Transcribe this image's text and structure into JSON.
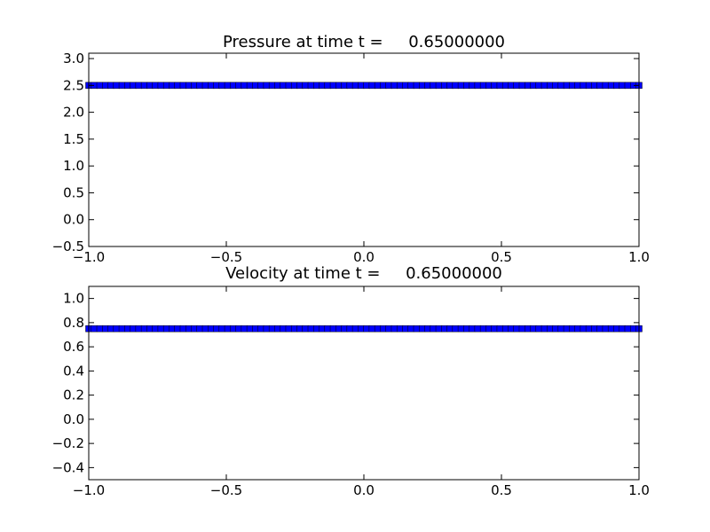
{
  "chart_data": [
    {
      "type": "scatter",
      "title": "Pressure at time t =     0.65000000",
      "xlabel": "",
      "ylabel": "",
      "xlim": [
        -1.0,
        1.0
      ],
      "ylim": [
        -0.5,
        3.1
      ],
      "grid": false,
      "x_ticks": [
        -1.0,
        -0.5,
        0.0,
        0.5,
        1.0
      ],
      "x_tick_labels": [
        "−1.0",
        "−0.5",
        "0.0",
        "0.5",
        "1.0"
      ],
      "y_ticks": [
        -0.5,
        0.0,
        0.5,
        1.0,
        1.5,
        2.0,
        2.5,
        3.0
      ],
      "y_tick_labels": [
        "−0.5",
        "0.0",
        "0.5",
        "1.0",
        "1.5",
        "2.0",
        "2.5",
        "3.0"
      ],
      "marker_color": "#0000ff",
      "series": [
        {
          "x_start": -1.0,
          "x_end": 1.0,
          "count": 100,
          "y": 2.5
        }
      ]
    },
    {
      "type": "scatter",
      "title": "Velocity at time t =     0.65000000",
      "xlabel": "",
      "ylabel": "",
      "xlim": [
        -1.0,
        1.0
      ],
      "ylim": [
        -0.5,
        1.1
      ],
      "grid": false,
      "x_ticks": [
        -1.0,
        -0.5,
        0.0,
        0.5,
        1.0
      ],
      "x_tick_labels": [
        "−1.0",
        "−0.5",
        "0.0",
        "0.5",
        "1.0"
      ],
      "y_ticks": [
        -0.4,
        -0.2,
        0.0,
        0.2,
        0.4,
        0.6,
        0.8,
        1.0
      ],
      "y_tick_labels": [
        "−0.4",
        "−0.2",
        "0.0",
        "0.2",
        "0.4",
        "0.6",
        "0.8",
        "1.0"
      ],
      "marker_color": "#0000ff",
      "series": [
        {
          "x_start": -1.0,
          "x_end": 1.0,
          "count": 100,
          "y": 0.75
        }
      ]
    }
  ]
}
